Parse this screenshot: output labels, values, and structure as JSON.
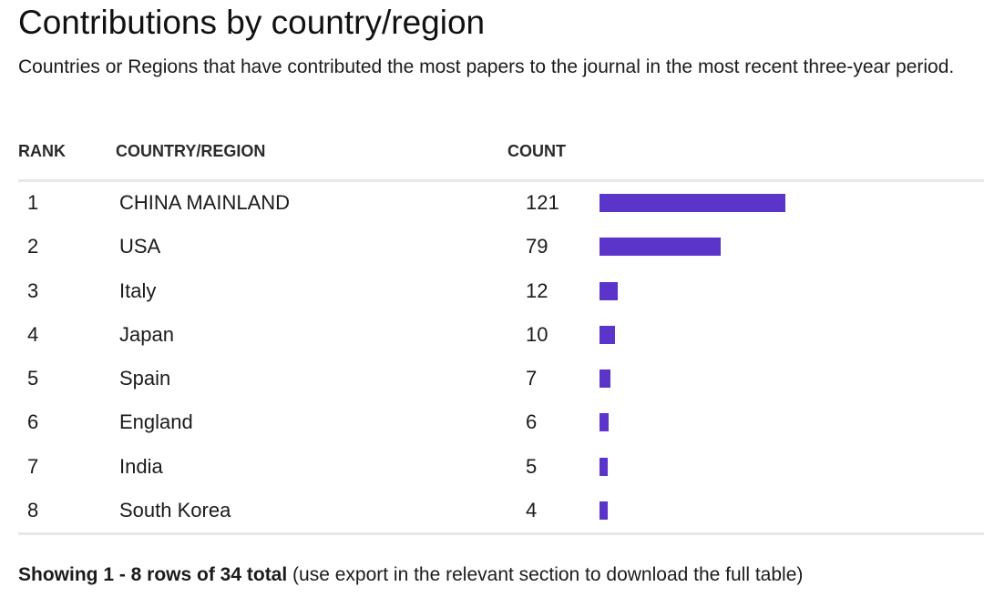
{
  "title": "Contributions by country/region",
  "subtitle": "Countries or Regions that have contributed the most papers to the journal in the most recent three-year period.",
  "table": {
    "headers": {
      "rank": "RANK",
      "country": "COUNTRY/REGION",
      "count": "COUNT"
    },
    "rows": [
      {
        "rank": "1",
        "country": "CHINA MAINLAND",
        "count": "121"
      },
      {
        "rank": "2",
        "country": "USA",
        "count": "79"
      },
      {
        "rank": "3",
        "country": "Italy",
        "count": "12"
      },
      {
        "rank": "4",
        "country": "Japan",
        "count": "10"
      },
      {
        "rank": "5",
        "country": "Spain",
        "count": "7"
      },
      {
        "rank": "6",
        "country": "England",
        "count": "6"
      },
      {
        "rank": "7",
        "country": "India",
        "count": "5"
      },
      {
        "rank": "8",
        "country": "South Korea",
        "count": "4"
      }
    ],
    "bar_color": "#5b34c9"
  },
  "footer": {
    "bold": "Showing 1 - 8 rows of 34 total",
    "rest": " (use export in the relevant section to download the full table)"
  }
}
